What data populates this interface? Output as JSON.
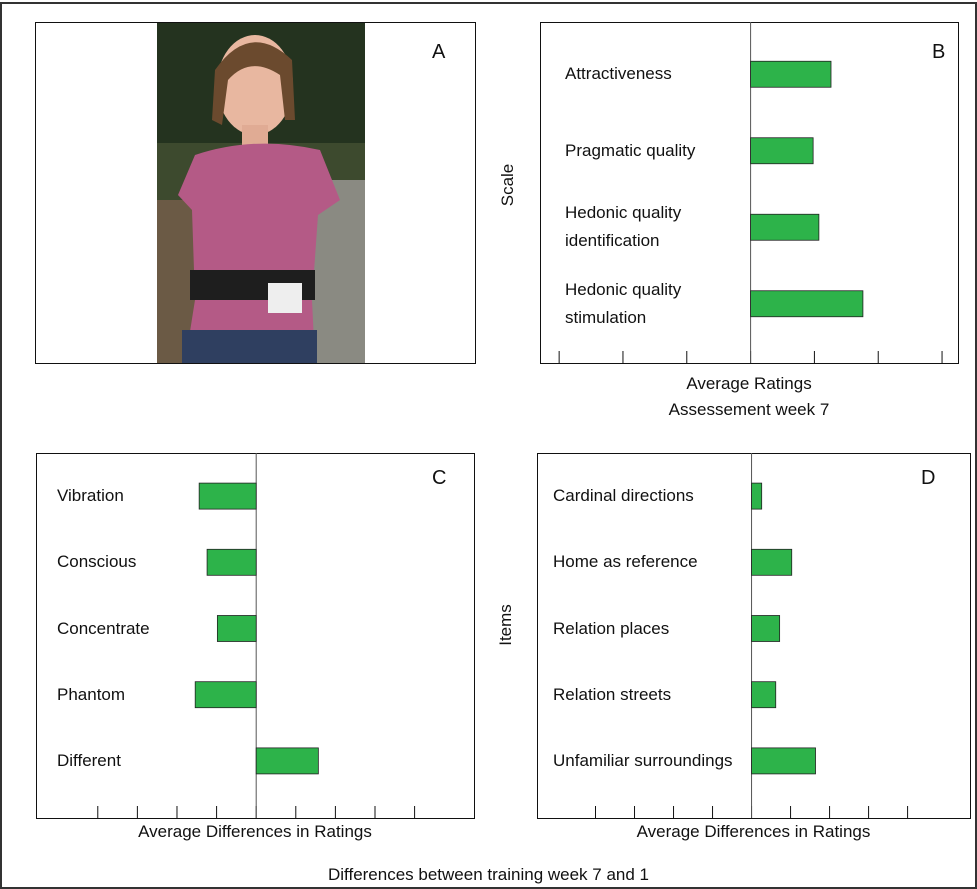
{
  "photo_label": "A",
  "figure_caption": "Differences between training week 7 and 1",
  "chart_data": [
    {
      "type": "bar",
      "orientation": "horizontal",
      "label": "B",
      "categories": [
        "Attractiveness",
        "Pragmatic quality",
        "Hedonic quality identification",
        "Hedonic quality stimulation"
      ],
      "values": [
        1.26,
        0.98,
        1.07,
        1.76
      ],
      "color": "#2db34a",
      "xlim": [
        -3.3,
        3.25
      ],
      "xticks": [
        -3,
        -2,
        -1,
        0,
        1,
        2,
        3
      ],
      "ylabel": "Scale",
      "xlabel": "Average Ratings",
      "subtitle": "Assessement week 7"
    },
    {
      "type": "bar",
      "orientation": "horizontal",
      "label": "C",
      "categories": [
        "Vibration",
        "Conscious",
        "Concentrate",
        "Phantom",
        "Different"
      ],
      "values": [
        -1.44,
        -1.24,
        -0.98,
        -1.54,
        1.57
      ],
      "color": "#2db34a",
      "xlim": [
        -5.56,
        5.5
      ],
      "xticks": [
        -4,
        -3,
        -2,
        -1,
        0,
        1,
        2,
        3,
        4
      ],
      "xlabel": "Average Differences in Ratings"
    },
    {
      "type": "bar",
      "orientation": "horizontal",
      "label": "D",
      "categories": [
        "Cardinal directions",
        "Home as reference",
        "Relation places",
        "Relation streets",
        "Unfamiliar surroundings"
      ],
      "values": [
        0.26,
        1.03,
        0.72,
        0.62,
        1.64
      ],
      "color": "#2db34a",
      "xlim": [
        -5.5,
        5.6
      ],
      "xticks": [
        -4,
        -3,
        -2,
        -1,
        0,
        1,
        2,
        3,
        4
      ],
      "ylabel": "Items",
      "xlabel": "Average Differences in Ratings"
    }
  ]
}
